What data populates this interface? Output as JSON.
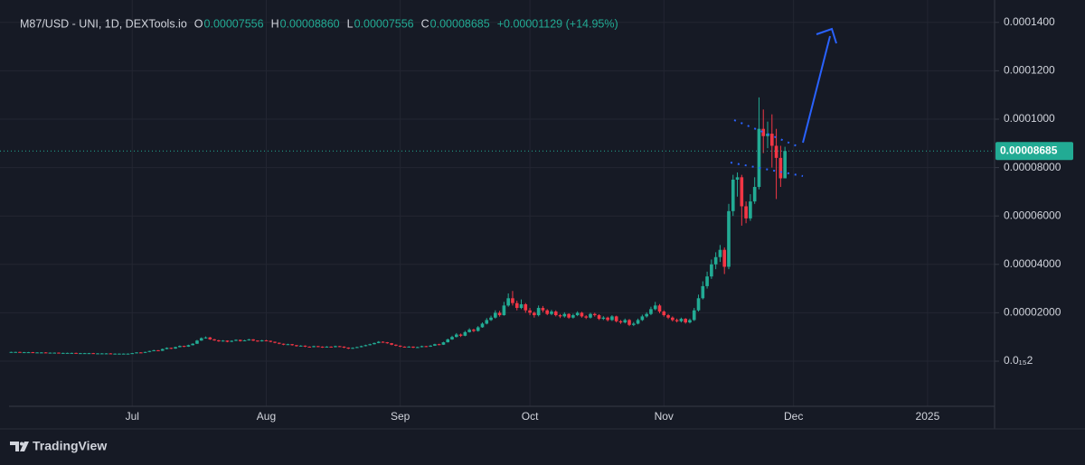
{
  "chart_data": {
    "type": "candlestick",
    "title": "M87/USD - UNI, 1D, DEXTools.io",
    "ohlc_legend": [
      [
        "O",
        "0.00007556"
      ],
      [
        "H",
        "0.00008860"
      ],
      [
        "L",
        "0.00007556"
      ],
      [
        "C",
        "0.00008685"
      ]
    ],
    "change": "+0.00001129 (+14.95%)",
    "last_price_label": "0.00008685",
    "up_color": "#22ab94",
    "down_color": "#f23645",
    "grid": true,
    "ylim": [
      -1.866e-05,
      0.00014925
    ],
    "yticks": [
      {
        "value": 2e-16,
        "label": "0.0₁₅2"
      },
      {
        "value": 2e-05,
        "label": "0.00002000"
      },
      {
        "value": 4e-05,
        "label": "0.00004000"
      },
      {
        "value": 6e-05,
        "label": "0.00006000"
      },
      {
        "value": 8e-05,
        "label": "0.00008000"
      },
      {
        "value": 0.0001,
        "label": "0.0001000"
      },
      {
        "value": 0.00012,
        "label": "0.0001200"
      },
      {
        "value": 0.00014,
        "label": "0.0001400"
      }
    ],
    "categories": [
      null,
      null,
      null,
      null,
      null,
      null,
      null,
      null,
      null,
      null,
      null,
      null,
      null,
      null,
      null,
      null,
      null,
      null,
      null,
      null,
      null,
      null,
      null,
      null,
      null,
      null,
      null,
      null,
      "Jul",
      null,
      null,
      null,
      null,
      null,
      null,
      null,
      null,
      null,
      null,
      null,
      null,
      null,
      null,
      null,
      null,
      null,
      null,
      null,
      null,
      null,
      null,
      null,
      null,
      null,
      null,
      null,
      null,
      null,
      null,
      "Aug",
      null,
      null,
      null,
      null,
      null,
      null,
      null,
      null,
      null,
      null,
      null,
      null,
      null,
      null,
      null,
      null,
      null,
      null,
      null,
      null,
      null,
      null,
      null,
      null,
      null,
      null,
      null,
      null,
      null,
      null,
      "Sep",
      null,
      null,
      null,
      null,
      null,
      null,
      null,
      null,
      null,
      null,
      null,
      null,
      null,
      null,
      null,
      null,
      null,
      null,
      null,
      null,
      null,
      null,
      null,
      null,
      null,
      null,
      null,
      null,
      null,
      "Oct",
      null,
      null,
      null,
      null,
      null,
      null,
      null,
      null,
      null,
      null,
      null,
      null,
      null,
      null,
      null,
      null,
      null,
      null,
      null,
      null,
      null,
      null,
      null,
      null,
      null,
      null,
      null,
      null,
      null,
      null,
      "Nov",
      null,
      null,
      null,
      null,
      null,
      null,
      null,
      null,
      null,
      null,
      null,
      null,
      null,
      null,
      null,
      null,
      null,
      null,
      null,
      null,
      null,
      null,
      null,
      null,
      null,
      null,
      null,
      null,
      null,
      "Dec",
      null,
      null,
      null,
      null,
      null,
      null,
      null,
      null,
      null,
      null,
      null,
      null,
      null,
      null,
      null,
      null,
      null,
      null,
      null,
      null,
      null,
      null,
      null,
      null,
      null,
      null,
      null,
      null,
      null,
      null,
      "2025",
      null,
      null,
      null,
      null,
      null,
      null,
      null,
      null,
      null,
      null,
      null,
      null,
      null,
      null,
      null
    ],
    "ohlc": [
      [
        3.8e-06,
        3.9e-06,
        3.7e-06,
        3.8e-06
      ],
      [
        3.8e-06,
        3.9e-06,
        3.7e-06,
        3.8e-06
      ],
      [
        3.8e-06,
        3.9e-06,
        3.6e-06,
        3.7e-06
      ],
      [
        3.7e-06,
        3.8e-06,
        3.6e-06,
        3.7e-06
      ],
      [
        3.7e-06,
        3.8e-06,
        3.6e-06,
        3.7e-06
      ],
      [
        3.7e-06,
        3.8e-06,
        3.5e-06,
        3.6e-06
      ],
      [
        3.6e-06,
        3.7e-06,
        3.5e-06,
        3.6e-06
      ],
      [
        3.6e-06,
        3.7e-06,
        3.5e-06,
        3.6e-06
      ],
      [
        3.6e-06,
        3.7e-06,
        3.4e-06,
        3.5e-06
      ],
      [
        3.5e-06,
        3.6e-06,
        3.4e-06,
        3.5e-06
      ],
      [
        3.5e-06,
        3.6e-06,
        3.4e-06,
        3.5e-06
      ],
      [
        3.5e-06,
        3.6e-06,
        3.3e-06,
        3.4e-06
      ],
      [
        3.4e-06,
        3.5e-06,
        3.3e-06,
        3.4e-06
      ],
      [
        3.4e-06,
        3.5e-06,
        3.3e-06,
        3.4e-06
      ],
      [
        3.4e-06,
        3.5e-06,
        3.3e-06,
        3.4e-06
      ],
      [
        3.4e-06,
        3.5e-06,
        3.2e-06,
        3.3e-06
      ],
      [
        3.3e-06,
        3.4e-06,
        3.2e-06,
        3.3e-06
      ],
      [
        3.3e-06,
        3.4e-06,
        3.2e-06,
        3.3e-06
      ],
      [
        3.3e-06,
        3.4e-06,
        3.2e-06,
        3.3e-06
      ],
      [
        3.3e-06,
        3.4e-06,
        3.1e-06,
        3.2e-06
      ],
      [
        3.2e-06,
        3.3e-06,
        3.1e-06,
        3.2e-06
      ],
      [
        3.2e-06,
        3.3e-06,
        3.1e-06,
        3.2e-06
      ],
      [
        3.2e-06,
        3.3e-06,
        3.1e-06,
        3.2e-06
      ],
      [
        3.2e-06,
        3.3e-06,
        3e-06,
        3.1e-06
      ],
      [
        3.1e-06,
        3.2e-06,
        3e-06,
        3.1e-06
      ],
      [
        3.1e-06,
        3.2e-06,
        3e-06,
        3.1e-06
      ],
      [
        3.1e-06,
        3.2e-06,
        3e-06,
        3.1e-06
      ],
      [
        3.1e-06,
        3.2e-06,
        3e-06,
        3.1e-06
      ],
      [
        3.1e-06,
        3.4e-06,
        3e-06,
        3.3e-06
      ],
      [
        3.3e-06,
        3.7e-06,
        3.2e-06,
        3.6e-06
      ],
      [
        3.6e-06,
        3.7e-06,
        3.4e-06,
        3.5e-06
      ],
      [
        3.5e-06,
        3.9e-06,
        3.4e-06,
        3.8e-06
      ],
      [
        3.8e-06,
        4.3e-06,
        3.7e-06,
        4.2e-06
      ],
      [
        4.2e-06,
        4.7e-06,
        4.1e-06,
        4.5e-06
      ],
      [
        4.5e-06,
        4.6e-06,
        4.2e-06,
        4.3e-06
      ],
      [
        4.3e-06,
        5.2e-06,
        4.2e-06,
        5e-06
      ],
      [
        5e-06,
        5.7e-06,
        4.9e-06,
        5.5e-06
      ],
      [
        5.5e-06,
        5.6e-06,
        5e-06,
        5.2e-06
      ],
      [
        5.2e-06,
        6e-06,
        5.1e-06,
        5.8e-06
      ],
      [
        5.8e-06,
        6.5e-06,
        5.7e-06,
        6.3e-06
      ],
      [
        6.3e-06,
        6.4e-06,
        5.8e-06,
        6e-06
      ],
      [
        6e-06,
        6.8e-06,
        5.9e-06,
        6.6e-06
      ],
      [
        6.6e-06,
        7.4e-06,
        6.5e-06,
        7.2e-06
      ],
      [
        7.2e-06,
        8.8e-06,
        7.1e-06,
        8.5e-06
      ],
      [
        8.5e-06,
        9.8e-06,
        8.4e-06,
        9.5e-06
      ],
      [
        9.5e-06,
        1.02e-05,
        9.3e-06,
        9.8e-06
      ],
      [
        9.8e-06,
        1e-05,
        8.8e-06,
        9e-06
      ],
      [
        9e-06,
        9.2e-06,
        8.4e-06,
        8.6e-06
      ],
      [
        8.6e-06,
        8.8e-06,
        8e-06,
        8.2e-06
      ],
      [
        8.2e-06,
        8.7e-06,
        8.1e-06,
        8.5e-06
      ],
      [
        8.5e-06,
        8.6e-06,
        7.8e-06,
        8e-06
      ],
      [
        8e-06,
        8.6e-06,
        7.9e-06,
        8.4e-06
      ],
      [
        8.4e-06,
        9e-06,
        8.3e-06,
        8.8e-06
      ],
      [
        8.8e-06,
        8.9e-06,
        8.1e-06,
        8.3e-06
      ],
      [
        8.3e-06,
        8.8e-06,
        8.2e-06,
        8.6e-06
      ],
      [
        8.6e-06,
        9.2e-06,
        8.5e-06,
        9e-06
      ],
      [
        9e-06,
        9.1e-06,
        8.3e-06,
        8.5e-06
      ],
      [
        8.5e-06,
        8.6e-06,
        8e-06,
        8.2e-06
      ],
      [
        8.2e-06,
        8.8e-06,
        8.1e-06,
        8.6e-06
      ],
      [
        8.6e-06,
        8.8e-06,
        8.2e-06,
        8.4e-06
      ],
      [
        8.4e-06,
        8.5e-06,
        7.8e-06,
        8e-06
      ],
      [
        8e-06,
        8.1e-06,
        7.4e-06,
        7.6e-06
      ],
      [
        7.6e-06,
        7.7e-06,
        7e-06,
        7.2e-06
      ],
      [
        7.2e-06,
        7.3e-06,
        6.6e-06,
        6.8e-06
      ],
      [
        6.8e-06,
        7.2e-06,
        6.7e-06,
        7e-06
      ],
      [
        7e-06,
        7.1e-06,
        6.4e-06,
        6.6e-06
      ],
      [
        6.6e-06,
        6.7e-06,
        6e-06,
        6.2e-06
      ],
      [
        6.2e-06,
        6.6e-06,
        6.1e-06,
        6.4e-06
      ],
      [
        6.4e-06,
        6.5e-06,
        5.8e-06,
        6e-06
      ],
      [
        6e-06,
        6.1e-06,
        5.6e-06,
        5.8e-06
      ],
      [
        5.8e-06,
        6.4e-06,
        5.7e-06,
        6.2e-06
      ],
      [
        6.2e-06,
        6.3e-06,
        5.8e-06,
        6e-06
      ],
      [
        6e-06,
        6.1e-06,
        5.5e-06,
        5.7e-06
      ],
      [
        5.7e-06,
        6.2e-06,
        5.6e-06,
        6e-06
      ],
      [
        6e-06,
        6.1e-06,
        5.6e-06,
        5.8e-06
      ],
      [
        5.8e-06,
        6.4e-06,
        5.7e-06,
        6.2e-06
      ],
      [
        6.2e-06,
        6.3e-06,
        5.8e-06,
        6e-06
      ],
      [
        6e-06,
        6.1e-06,
        5.4e-06,
        5.6e-06
      ],
      [
        5.6e-06,
        5.7e-06,
        5e-06,
        5.2e-06
      ],
      [
        5.2e-06,
        5.7e-06,
        5.1e-06,
        5.5e-06
      ],
      [
        5.5e-06,
        6e-06,
        5.4e-06,
        5.8e-06
      ],
      [
        5.8e-06,
        6.4e-06,
        5.7e-06,
        6.2e-06
      ],
      [
        6.2e-06,
        6.8e-06,
        6.1e-06,
        6.6e-06
      ],
      [
        6.6e-06,
        7.2e-06,
        6.5e-06,
        7e-06
      ],
      [
        7e-06,
        7.7e-06,
        6.9e-06,
        7.5e-06
      ],
      [
        7.5e-06,
        8.3e-06,
        7.4e-06,
        8e-06
      ],
      [
        8e-06,
        8.2e-06,
        7.6e-06,
        7.8e-06
      ],
      [
        7.8e-06,
        7.9e-06,
        7.2e-06,
        7.4e-06
      ],
      [
        7.4e-06,
        7.5e-06,
        6.6e-06,
        6.8e-06
      ],
      [
        6.8e-06,
        6.9e-06,
        6.2e-06,
        6.4e-06
      ],
      [
        6.4e-06,
        6.5e-06,
        5.8e-06,
        6e-06
      ],
      [
        6e-06,
        6.1e-06,
        5.6e-06,
        5.8e-06
      ],
      [
        5.8e-06,
        6.2e-06,
        5.7e-06,
        6e-06
      ],
      [
        6e-06,
        6.1e-06,
        5.4e-06,
        5.6e-06
      ],
      [
        5.6e-06,
        6e-06,
        5.5e-06,
        5.8e-06
      ],
      [
        5.8e-06,
        6.4e-06,
        5.7e-06,
        6.2e-06
      ],
      [
        6.2e-06,
        6.3e-06,
        5.8e-06,
        6e-06
      ],
      [
        6e-06,
        6.6e-06,
        5.9e-06,
        6.4e-06
      ],
      [
        6.4e-06,
        7.2e-06,
        6.3e-06,
        7e-06
      ],
      [
        7e-06,
        7.2e-06,
        6.6e-06,
        6.8e-06
      ],
      [
        6.8e-06,
        8e-06,
        6.7e-06,
        7.8e-06
      ],
      [
        7.8e-06,
        9.3e-06,
        7.7e-06,
        9e-06
      ],
      [
        9e-06,
        1.05e-05,
        8.8e-06,
        1e-05
      ],
      [
        1e-05,
        1.16e-05,
        9.8e-06,
        1.1e-05
      ],
      [
        1.1e-05,
        1.14e-05,
        1e-05,
        1.05e-05
      ],
      [
        1.05e-05,
        1.25e-05,
        1.03e-05,
        1.2e-05
      ],
      [
        1.2e-05,
        1.36e-05,
        1.18e-05,
        1.3e-05
      ],
      [
        1.3e-05,
        1.34e-05,
        1.2e-05,
        1.25e-05
      ],
      [
        1.25e-05,
        1.45e-05,
        1.22e-05,
        1.4e-05
      ],
      [
        1.4e-05,
        1.6e-05,
        1.38e-05,
        1.55e-05
      ],
      [
        1.55e-05,
        1.78e-05,
        1.52e-05,
        1.7e-05
      ],
      [
        1.7e-05,
        1.88e-05,
        1.66e-05,
        1.8e-05
      ],
      [
        1.8e-05,
        2.1e-05,
        1.76e-05,
        2e-05
      ],
      [
        2e-05,
        2.08e-05,
        1.84e-05,
        1.9e-05
      ],
      [
        1.9e-05,
        2.45e-05,
        1.88e-05,
        2.3e-05
      ],
      [
        2.3e-05,
        2.8e-05,
        2.25e-05,
        2.6e-05
      ],
      [
        2.6e-05,
        2.9e-05,
        2.3e-05,
        2.4e-05
      ],
      [
        2.4e-05,
        2.5e-05,
        2.1e-05,
        2.2e-05
      ],
      [
        2.2e-05,
        2.55e-05,
        2.15e-05,
        2.35e-05
      ],
      [
        2.35e-05,
        2.4e-05,
        2e-05,
        2.1e-05
      ],
      [
        2.1e-05,
        2.2e-05,
        1.9e-05,
        2e-05
      ],
      [
        2e-05,
        2.05e-05,
        1.8e-05,
        1.9e-05
      ],
      [
        1.9e-05,
        2.3e-05,
        1.85e-05,
        2.2e-05
      ],
      [
        2.2e-05,
        2.28e-05,
        2.02e-05,
        2.1e-05
      ],
      [
        2.1e-05,
        2.15e-05,
        1.9e-05,
        1.95e-05
      ],
      [
        1.95e-05,
        2.12e-05,
        1.9e-05,
        2.05e-05
      ],
      [
        2.05e-05,
        2.1e-05,
        1.85e-05,
        1.9e-05
      ],
      [
        1.9e-05,
        1.95e-05,
        1.78e-05,
        1.85e-05
      ],
      [
        1.85e-05,
        2.02e-05,
        1.8e-05,
        1.95e-05
      ],
      [
        1.95e-05,
        1.98e-05,
        1.75e-05,
        1.8e-05
      ],
      [
        1.8e-05,
        1.96e-05,
        1.76e-05,
        1.9e-05
      ],
      [
        1.9e-05,
        2.06e-05,
        1.86e-05,
        2e-05
      ],
      [
        2e-05,
        2.04e-05,
        1.8e-05,
        1.85e-05
      ],
      [
        1.85e-05,
        1.9e-05,
        1.74e-05,
        1.8e-05
      ],
      [
        1.8e-05,
        2e-05,
        1.76e-05,
        1.95e-05
      ],
      [
        1.95e-05,
        2e-05,
        1.84e-05,
        1.9e-05
      ],
      [
        1.9e-05,
        1.94e-05,
        1.7e-05,
        1.75e-05
      ],
      [
        1.75e-05,
        1.86e-05,
        1.7e-05,
        1.8e-05
      ],
      [
        1.8e-05,
        1.84e-05,
        1.64e-05,
        1.7e-05
      ],
      [
        1.7e-05,
        1.9e-05,
        1.66e-05,
        1.85e-05
      ],
      [
        1.85e-05,
        1.88e-05,
        1.6e-05,
        1.65e-05
      ],
      [
        1.65e-05,
        1.7e-05,
        1.54e-05,
        1.6e-05
      ],
      [
        1.6e-05,
        1.76e-05,
        1.56e-05,
        1.7e-05
      ],
      [
        1.7e-05,
        1.74e-05,
        1.45e-05,
        1.5e-05
      ],
      [
        1.5e-05,
        1.62e-05,
        1.45e-05,
        1.55e-05
      ],
      [
        1.55e-05,
        1.76e-05,
        1.52e-05,
        1.7e-05
      ],
      [
        1.7e-05,
        1.92e-05,
        1.66e-05,
        1.85e-05
      ],
      [
        1.85e-05,
        2.02e-05,
        1.8e-05,
        1.95e-05
      ],
      [
        1.95e-05,
        2.25e-05,
        1.9e-05,
        2.15e-05
      ],
      [
        2.15e-05,
        2.45e-05,
        2.1e-05,
        2.3e-05
      ],
      [
        2.3e-05,
        2.36e-05,
        1.98e-05,
        2.05e-05
      ],
      [
        2.05e-05,
        2.1e-05,
        1.84e-05,
        1.9e-05
      ],
      [
        1.9e-05,
        1.95e-05,
        1.74e-05,
        1.8e-05
      ],
      [
        1.8e-05,
        1.85e-05,
        1.64e-05,
        1.7e-05
      ],
      [
        1.7e-05,
        1.76e-05,
        1.6e-05,
        1.65e-05
      ],
      [
        1.65e-05,
        1.8e-05,
        1.6e-05,
        1.75e-05
      ],
      [
        1.75e-05,
        1.78e-05,
        1.55e-05,
        1.6e-05
      ],
      [
        1.6e-05,
        1.76e-05,
        1.56e-05,
        1.7e-05
      ],
      [
        1.7e-05,
        2.2e-05,
        1.66e-05,
        2.1e-05
      ],
      [
        2.1e-05,
        2.75e-05,
        2.05e-05,
        2.6e-05
      ],
      [
        2.6e-05,
        3.3e-05,
        2.55e-05,
        3.1e-05
      ],
      [
        3.1e-05,
        3.7e-05,
        3e-05,
        3.5e-05
      ],
      [
        3.5e-05,
        4.2e-05,
        3.4e-05,
        4e-05
      ],
      [
        4e-05,
        4.5e-05,
        3.8e-05,
        4.3e-05
      ],
      [
        4.3e-05,
        4.8e-05,
        4.1e-05,
        4.6e-05
      ],
      [
        4.6e-05,
        4.7e-05,
        3.6e-05,
        3.9e-05
      ],
      [
        3.9e-05,
        6.5e-05,
        3.8e-05,
        6.2e-05
      ],
      [
        6.2e-05,
        7.7e-05,
        6e-05,
        7.5e-05
      ],
      [
        7.5e-05,
        7.8e-05,
        6.8e-05,
        7.6e-05
      ],
      [
        7.6e-05,
        7.7e-05,
        5.6e-05,
        6.4e-05
      ],
      [
        6.4e-05,
        6.6e-05,
        5.7e-05,
        5.9e-05
      ],
      [
        5.9e-05,
        6.9e-05,
        5.8e-05,
        6.6e-05
      ],
      [
        6.6e-05,
        7.6e-05,
        6.5e-05,
        7.2e-05
      ],
      [
        7.2e-05,
        0.000109,
        7.1e-05,
        9.6e-05
      ],
      [
        9.6e-05,
        0.000104,
        8.6e-05,
        9.3e-05
      ],
      [
        9.3e-05,
        9.9e-05,
        8.8e-05,
        9.4e-05
      ],
      [
        9.4e-05,
        0.000102,
        8e-05,
        8.9e-05
      ],
      [
        8.9e-05,
        9.6e-05,
        6.7e-05,
        8.4e-05
      ],
      [
        8.4e-05,
        8.9e-05,
        7.2e-05,
        7.556e-05
      ],
      [
        7.556e-05,
        8.86e-05,
        7.556e-05,
        8.685e-05
      ],
      null,
      null,
      null,
      null,
      null,
      null,
      null,
      null,
      null,
      null,
      null,
      null,
      null,
      null,
      null,
      null,
      null,
      null,
      null,
      null,
      null,
      null,
      null,
      null,
      null,
      null,
      null,
      null,
      null,
      null,
      null,
      null,
      null,
      null,
      null,
      null,
      null,
      null,
      null,
      null,
      null,
      null,
      null,
      null,
      null,
      null,
      null,
      null
    ]
  },
  "branding": "TradingView"
}
